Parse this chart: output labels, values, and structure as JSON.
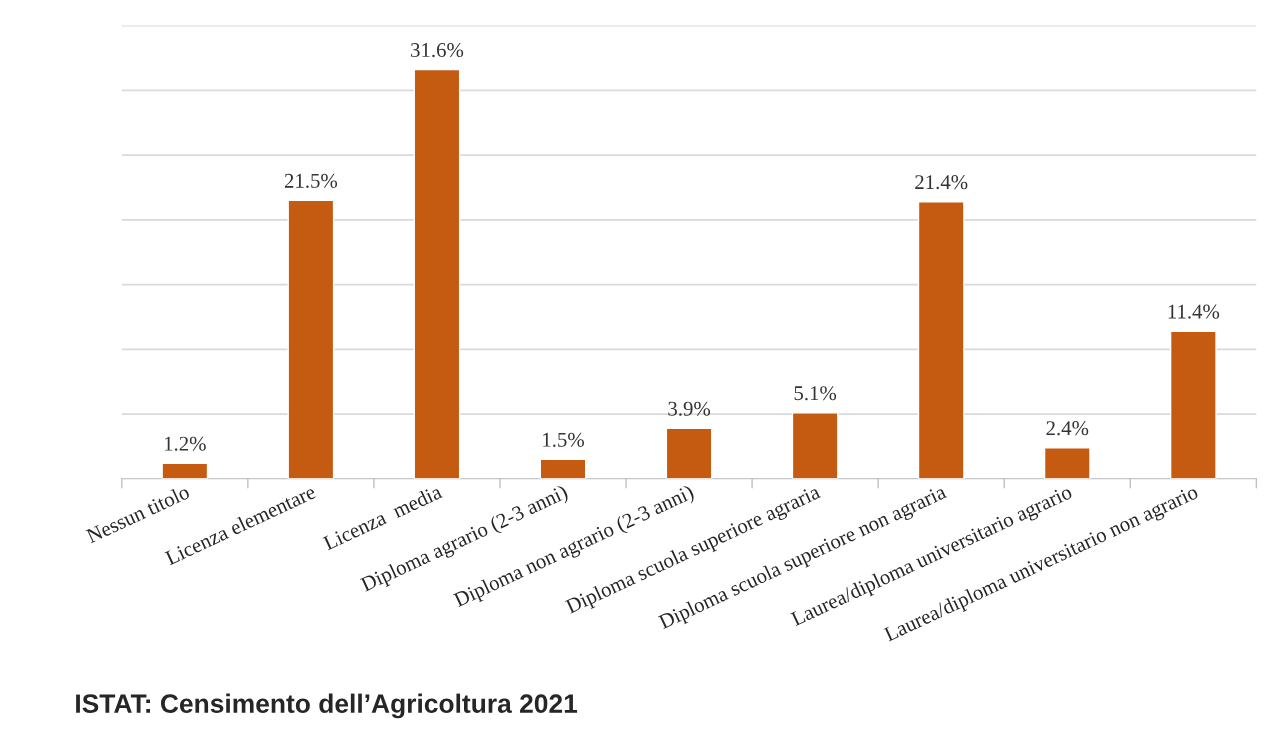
{
  "chart_data": {
    "type": "bar",
    "categories": [
      "Nessun titolo",
      "Licenza elementare",
      "Licenza  media",
      "Diploma agrario (2-3 anni)",
      "Diploma non agrario (2-3 anni)",
      "Diploma scuola superiore agraria",
      "Diploma scuola superiore non agraria",
      "Laurea/diploma universitario agrario",
      "Laurea/diploma universitario non agrario"
    ],
    "values": [
      1.2,
      21.5,
      31.6,
      1.5,
      3.9,
      5.1,
      21.4,
      2.4,
      11.4
    ],
    "value_labels": [
      "1.2%",
      "21.5%",
      "31.6%",
      "1.5%",
      "3.9%",
      "5.1%",
      "21.4%",
      "2.4%",
      "11.4%"
    ],
    "color": "#c55a11",
    "ylim": [
      0,
      35
    ],
    "yticks": [
      {
        "value": 0,
        "label": null
      },
      {
        "value": 5,
        "label": null
      },
      {
        "value": 10,
        "label": null
      },
      {
        "value": 15,
        "label": null
      },
      {
        "value": 20,
        "label": null
      },
      {
        "value": 25,
        "label": null
      },
      {
        "value": 30,
        "label": null
      },
      {
        "value": 35,
        "label": null
      }
    ],
    "tick_labels": "x",
    "grid": "y",
    "annotations": [
      "ISTAT: Censimento dell’Agricoltura 2021"
    ]
  }
}
